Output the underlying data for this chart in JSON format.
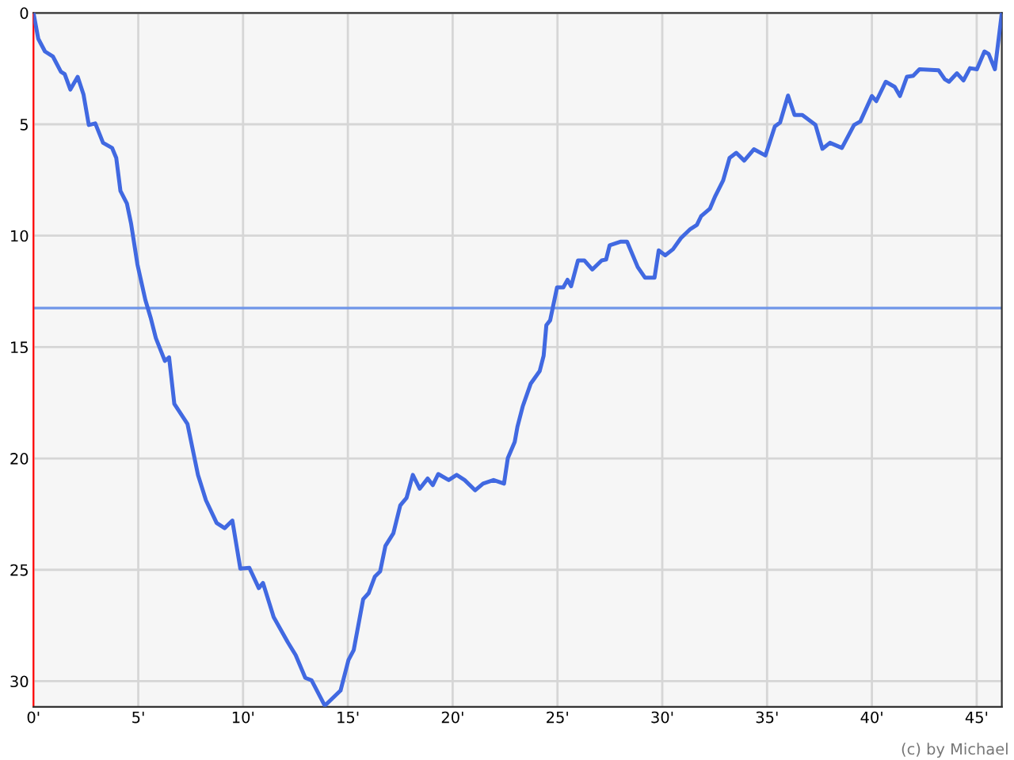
{
  "chart_data": {
    "type": "line",
    "x": [
      0,
      0.23,
      0.55,
      0.93,
      1.31,
      1.49,
      1.76,
      2.11,
      2.39,
      2.64,
      2.95,
      3.32,
      3.75,
      3.95,
      4.15,
      4.46,
      4.66,
      4.96,
      5.34,
      5.59,
      5.84,
      6.27,
      6.47,
      6.72,
      7.35,
      7.85,
      8.23,
      8.74,
      9.12,
      9.49,
      9.87,
      10.3,
      10.75,
      10.95,
      11.46,
      12.14,
      12.51,
      12.97,
      13.27,
      13.9,
      14.15,
      14.65,
      15.03,
      15.28,
      15.73,
      15.99,
      16.29,
      16.54,
      16.79,
      17.17,
      17.5,
      17.8,
      18.1,
      18.43,
      18.81,
      19.05,
      19.31,
      19.81,
      20.19,
      20.57,
      21.07,
      21.45,
      21.95,
      22.45,
      22.63,
      22.96,
      23.09,
      23.34,
      23.72,
      24.15,
      24.34,
      24.47,
      24.65,
      24.98,
      25.28,
      25.48,
      25.65,
      25.98,
      26.28,
      26.66,
      27.11,
      27.32,
      27.49,
      28,
      28.32,
      28.83,
      29.18,
      29.63,
      29.83,
      30.14,
      30.51,
      30.89,
      31.34,
      31.65,
      31.85,
      32.27,
      32.53,
      32.9,
      33.21,
      33.53,
      33.91,
      34.37,
      34.92,
      35.37,
      35.62,
      36,
      36.31,
      36.68,
      37.31,
      37.64,
      38,
      38.57,
      39.15,
      39.45,
      40,
      40.21,
      40.66,
      41.09,
      41.34,
      41.67,
      41.97,
      42.27,
      43.18,
      43.48,
      43.68,
      44.06,
      44.37,
      44.68,
      45.01,
      45.37,
      45.57,
      45.87,
      46.2
    ],
    "series": [
      {
        "color": "#4169e1",
        "values": [
          0,
          1.16,
          1.73,
          1.96,
          2.64,
          2.75,
          3.44,
          2.87,
          3.67,
          5.03,
          4.96,
          5.83,
          6.06,
          6.51,
          7.99,
          8.56,
          9.47,
          11.29,
          12.89,
          13.68,
          14.6,
          15.62,
          15.46,
          17.55,
          18.46,
          20.74,
          21.88,
          22.9,
          23.13,
          22.79,
          24.95,
          24.91,
          25.82,
          25.59,
          27.12,
          28.26,
          28.83,
          29.85,
          29.96,
          31.1,
          30.87,
          30.42,
          29.05,
          28.6,
          26.32,
          26.05,
          25.3,
          25.07,
          23.93,
          23.36,
          22.11,
          21.77,
          20.74,
          21.36,
          20.9,
          21.2,
          20.7,
          20.97,
          20.74,
          20.97,
          21.43,
          21.13,
          20.97,
          21.13,
          19.99,
          19.26,
          18.58,
          17.67,
          16.65,
          16.08,
          15.39,
          14.02,
          13.8,
          12.32,
          12.32,
          11.98,
          12.27,
          11.11,
          11.11,
          11.52,
          11.11,
          11.07,
          10.43,
          10.27,
          10.27,
          11.41,
          11.89,
          11.89,
          10.66,
          10.88,
          10.61,
          10.11,
          9.7,
          9.52,
          9.13,
          8.79,
          8.22,
          7.53,
          6.51,
          6.28,
          6.63,
          6.12,
          6.4,
          5.1,
          4.92,
          3.71,
          4.58,
          4.58,
          5.03,
          6.1,
          5.83,
          6.06,
          5.03,
          4.87,
          3.73,
          3.96,
          3.09,
          3.32,
          3.73,
          2.87,
          2.82,
          2.53,
          2.57,
          2.98,
          3.09,
          2.71,
          3.03,
          2.48,
          2.53,
          1.73,
          1.84,
          2.53,
          0
        ]
      }
    ],
    "xlim": [
      0,
      46.2
    ],
    "ylim": [
      31.15,
      0
    ],
    "xticks": [
      {
        "value": 0,
        "label": "0'"
      },
      {
        "value": 5,
        "label": "5'"
      },
      {
        "value": 10,
        "label": "10'"
      },
      {
        "value": 15,
        "label": "15'"
      },
      {
        "value": 20,
        "label": "20'"
      },
      {
        "value": 25,
        "label": "25'"
      },
      {
        "value": 30,
        "label": "30'"
      },
      {
        "value": 35,
        "label": "35'"
      },
      {
        "value": 40,
        "label": "40'"
      },
      {
        "value": 45,
        "label": "45'"
      }
    ],
    "yticks": [
      0,
      5,
      10,
      15,
      20,
      25,
      30
    ],
    "ref_lines": [
      {
        "axis": "y",
        "value": 13.25,
        "color": "#7096e8"
      }
    ],
    "grid": true,
    "marker": "none",
    "line_style": "solid",
    "annotations": [
      "(c) by Michael"
    ]
  }
}
